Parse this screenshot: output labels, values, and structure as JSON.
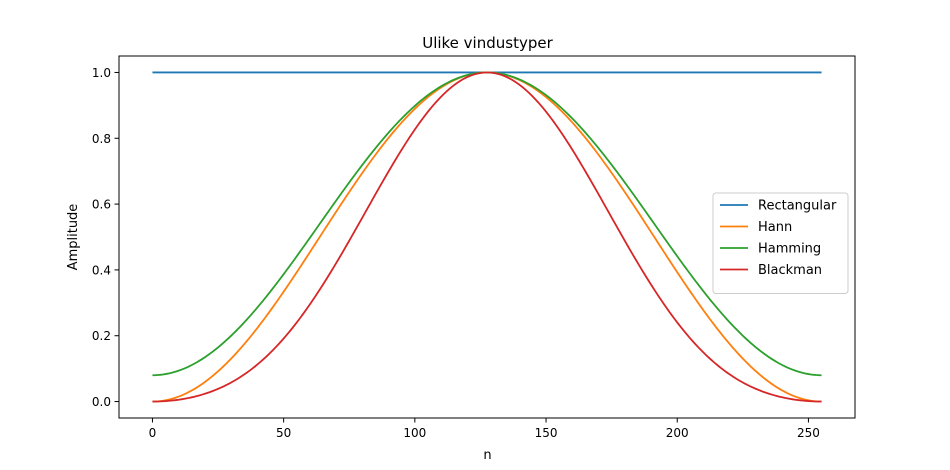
{
  "chart_data": {
    "type": "line",
    "title": "Ulike vindustyper",
    "xlabel": "n",
    "ylabel": "Amplitude",
    "xlim": [
      -12.75,
      267.75
    ],
    "ylim": [
      -0.05,
      1.05
    ],
    "xticks": [
      0,
      50,
      100,
      150,
      200,
      250
    ],
    "xtick_labels": [
      "0",
      "50",
      "100",
      "150",
      "200",
      "250"
    ],
    "yticks": [
      0.0,
      0.2,
      0.4,
      0.6,
      0.8,
      1.0
    ],
    "ytick_labels": [
      "0.0",
      "0.2",
      "0.4",
      "0.6",
      "0.8",
      "1.0"
    ],
    "grid": false,
    "legend_position": "center-right",
    "x_range": [
      0,
      255
    ],
    "n_points": 256,
    "series": [
      {
        "name": "Rectangular",
        "color": "#1f77b4",
        "x": [
          0,
          32,
          64,
          96,
          128,
          160,
          192,
          224,
          255
        ],
        "y": [
          1.0,
          1.0,
          1.0,
          1.0,
          1.0,
          1.0,
          1.0,
          1.0,
          1.0
        ]
      },
      {
        "name": "Hann",
        "color": "#ff7f0e",
        "x": [
          0,
          32,
          64,
          96,
          128,
          160,
          192,
          224,
          255
        ],
        "y": [
          0.0,
          0.146,
          0.501,
          0.852,
          1.0,
          0.853,
          0.499,
          0.145,
          0.0
        ]
      },
      {
        "name": "Hamming",
        "color": "#2ca02c",
        "x": [
          0,
          32,
          64,
          96,
          128,
          160,
          192,
          224,
          255
        ],
        "y": [
          0.08,
          0.214,
          0.541,
          0.864,
          1.0,
          0.865,
          0.539,
          0.213,
          0.08
        ]
      },
      {
        "name": "Blackman",
        "color": "#d62728",
        "x": [
          0,
          32,
          64,
          96,
          128,
          160,
          192,
          224,
          255
        ],
        "y": [
          0.0,
          0.066,
          0.342,
          0.774,
          1.0,
          0.775,
          0.339,
          0.065,
          0.0
        ]
      }
    ]
  }
}
